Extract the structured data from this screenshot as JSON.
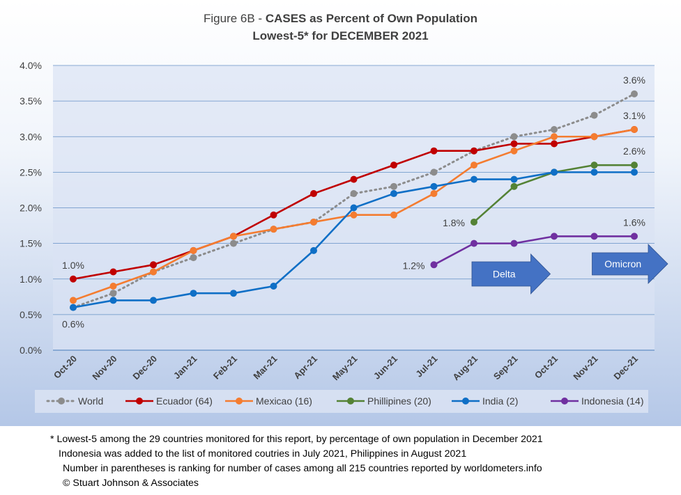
{
  "title": {
    "prefix": "Figure 6B - ",
    "bold": "CASES as Percent of Own Population",
    "line2": "Lowest-5* for DECEMBER 2021"
  },
  "chart_data": {
    "type": "line",
    "categories": [
      "Oct-20",
      "Nov-20",
      "Dec-20",
      "Jan-21",
      "Feb-21",
      "Mar-21",
      "Apr-21",
      "May-21",
      "Jun-21",
      "Jul-21",
      "Aug-21",
      "Sep-21",
      "Oct-21",
      "Nov-21",
      "Dec-21"
    ],
    "y_ticks": [
      "0.0%",
      "0.5%",
      "1.0%",
      "1.5%",
      "2.0%",
      "2.5%",
      "3.0%",
      "3.5%",
      "4.0%"
    ],
    "ylim": [
      0,
      4.0
    ],
    "y_unit": "%",
    "grid": true,
    "legend_position": "bottom",
    "series": [
      {
        "name": "World",
        "color": "#8c8c8c",
        "dashed": true,
        "values": [
          0.6,
          0.8,
          1.1,
          1.3,
          1.5,
          1.7,
          1.8,
          2.2,
          2.3,
          2.5,
          2.8,
          3.0,
          3.1,
          3.3,
          3.6
        ]
      },
      {
        "name": "Ecuador (64)",
        "color": "#c00000",
        "dashed": false,
        "values": [
          1.0,
          1.1,
          1.2,
          1.4,
          1.6,
          1.9,
          2.2,
          2.4,
          2.6,
          2.8,
          2.8,
          2.9,
          2.9,
          3.0,
          3.1
        ]
      },
      {
        "name": "Mexicao (16)",
        "color": "#f47c30",
        "dashed": false,
        "values": [
          0.7,
          0.9,
          1.1,
          1.4,
          1.6,
          1.7,
          1.8,
          1.9,
          1.9,
          2.2,
          2.6,
          2.8,
          3.0,
          3.0,
          3.1
        ]
      },
      {
        "name": "Phillipines (20)",
        "color": "#548235",
        "dashed": false,
        "values": [
          null,
          null,
          null,
          null,
          null,
          null,
          null,
          null,
          null,
          null,
          1.8,
          2.3,
          2.5,
          2.6,
          2.6
        ]
      },
      {
        "name": "India (2)",
        "color": "#0f6fc6",
        "dashed": false,
        "values": [
          0.6,
          0.7,
          0.7,
          0.8,
          0.8,
          0.9,
          1.4,
          2.0,
          2.2,
          2.3,
          2.4,
          2.4,
          2.5,
          2.5,
          2.5
        ]
      },
      {
        "name": "Indonesia (14)",
        "color": "#7030a0",
        "dashed": false,
        "values": [
          null,
          null,
          null,
          null,
          null,
          null,
          null,
          null,
          null,
          1.2,
          1.5,
          1.5,
          1.6,
          1.6,
          1.6
        ]
      }
    ],
    "annotations": [
      {
        "text": "1.0%",
        "series": "Ecuador (64)",
        "x": "Oct-20",
        "y": 1.0,
        "pos": "above"
      },
      {
        "text": "0.6%",
        "series": "India (2)",
        "x": "Oct-20",
        "y": 0.6,
        "pos": "below"
      },
      {
        "text": "1.2%",
        "series": "Indonesia (14)",
        "x": "Jul-21",
        "y": 1.2,
        "pos": "left"
      },
      {
        "text": "1.8%",
        "series": "Phillipines (20)",
        "x": "Aug-21",
        "y": 1.8,
        "pos": "left"
      },
      {
        "text": "3.6%",
        "series": "World",
        "x": "Dec-21",
        "y": 3.6,
        "pos": "above"
      },
      {
        "text": "3.1%",
        "series": "Ecuador (64)",
        "x": "Dec-21",
        "y": 3.1,
        "pos": "above"
      },
      {
        "text": "2.6%",
        "series": "Phillipines (20)",
        "x": "Dec-21",
        "y": 2.6,
        "pos": "above"
      },
      {
        "text": "1.6%",
        "series": "Indonesia (14)",
        "x": "Dec-21",
        "y": 1.6,
        "pos": "above"
      }
    ],
    "arrows": [
      {
        "text": "Delta",
        "color": "#4472c4"
      },
      {
        "text": "Omicron",
        "color": "#4472c4"
      }
    ]
  },
  "footnotes": [
    "* Lowest-5 among the 29 countries monitored for this report, by percentage of own population in December 2021",
    "Indonesia was added to the list of monitored coutries in July 2021, Philippines in August 2021",
    "Number in parentheses is ranking for number of cases among all 215 countries reported by worldometers.info",
    "© Stuart Johnson & Associates"
  ],
  "colors": {
    "bg_top": "#ffffff",
    "bg_bottom": "#b4c7e7",
    "plot_bg": "#dae3f3",
    "grid": "#4f81bd"
  }
}
